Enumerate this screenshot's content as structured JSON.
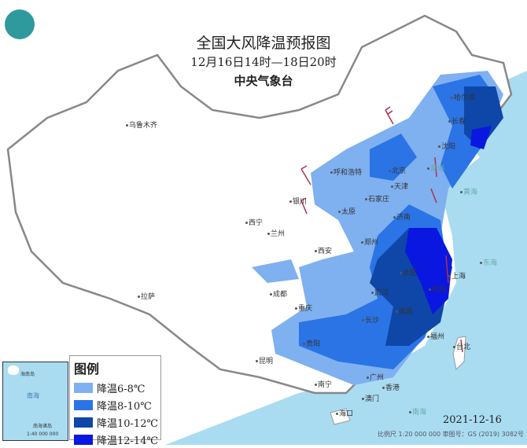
{
  "header": {
    "title": "全国大风降温预报图",
    "time_range": "12月16日14时—18日20时",
    "issuer": "中央气象台"
  },
  "legend": {
    "title": "图例",
    "items": [
      {
        "label": "降温6-8℃",
        "color": "#7fb0f0"
      },
      {
        "label": "降温8-10℃",
        "color": "#2b74e6"
      },
      {
        "label": "降温10-12℃",
        "color": "#0e47a8"
      },
      {
        "label": "降温12-14℃",
        "color": "#0a17e0"
      }
    ]
  },
  "cities": [
    "乌鲁木齐",
    "拉萨",
    "西宁",
    "兰州",
    "银川",
    "呼和浩特",
    "北京",
    "天津",
    "石家庄",
    "太原",
    "济南",
    "郑州",
    "西安",
    "成都",
    "重庆",
    "武汉",
    "合肥",
    "上海",
    "杭州",
    "南昌",
    "长沙",
    "贵阳",
    "昆明",
    "南宁",
    "广州",
    "香港",
    "澳门",
    "海口",
    "福州",
    "台北",
    "哈尔滨",
    "长春",
    "沈阳"
  ],
  "seas": [
    "渤海",
    "黄海",
    "东海",
    "南海"
  ],
  "inset": {
    "place": "海南岛",
    "sea": "南海",
    "islands": "南海诸岛",
    "scale": "1:40 000 000"
  },
  "date": "2021-12-16",
  "footer": "比例尺 1:20 000 000    审图号：GS (2019) 3082号",
  "colors": {
    "sea": "#a9dcf0",
    "land": "#ffffff",
    "border": "#999999",
    "wind_barb": "#b0304a"
  }
}
